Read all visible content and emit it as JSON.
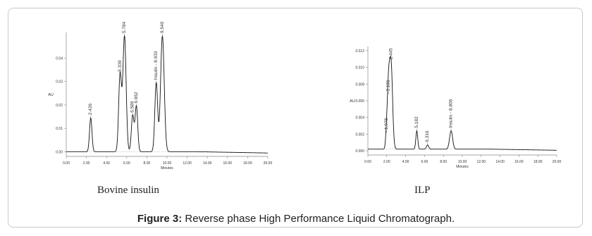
{
  "figure": {
    "caption_label": "Figure 3:",
    "caption_text": " Reverse phase High Performance Liquid Chromatograph."
  },
  "chart_data": [
    {
      "type": "line",
      "panel_label": "Bovine insulin",
      "ylabel": "AU",
      "xlabel": "Minutes",
      "xlim": [
        0,
        20
      ],
      "ylim": [
        -0.002,
        0.051
      ],
      "xticks": [
        "0.00",
        "2.00",
        "4.00",
        "6.00",
        "8.00",
        "10.00",
        "12.00",
        "14.00",
        "16.00",
        "18.00",
        "20.00"
      ],
      "yticks": [
        "0.00",
        "0.01",
        "0.02",
        "0.03",
        "0.04"
      ],
      "peaks": [
        {
          "label": "2.426",
          "x": 2.43,
          "y": 0.0145
        },
        {
          "label": "5.339",
          "x": 5.34,
          "y": 0.033
        },
        {
          "label": "5.784",
          "x": 5.78,
          "y": 0.0495
        },
        {
          "label": "6.589",
          "x": 6.59,
          "y": 0.0155
        },
        {
          "label": "6.962",
          "x": 6.96,
          "y": 0.0195
        },
        {
          "label": "Insulin - 8.933",
          "x": 8.93,
          "y": 0.0295
        },
        {
          "label": "9.540",
          "x": 9.54,
          "y": 0.0495
        }
      ]
    },
    {
      "type": "line",
      "panel_label": "ILP",
      "ylabel": "AU",
      "xlabel": "Minutes",
      "xlim": [
        0,
        20
      ],
      "ylim": [
        -0.0005,
        0.0125
      ],
      "xticks": [
        "0.00",
        "2.00",
        "4.00",
        "6.00",
        "8.00",
        "10.00",
        "12.00",
        "14.00",
        "16.00",
        "18.00",
        "20.00"
      ],
      "yticks": [
        "0.000",
        "0.002",
        "0.004",
        "0.006",
        "0.008",
        "0.010",
        "0.012"
      ],
      "peaks": [
        {
          "label": "1.978",
          "x": 1.98,
          "y": 0.0022
        },
        {
          "label": "2.181",
          "x": 2.18,
          "y": 0.0068
        },
        {
          "label": "2.445",
          "x": 2.45,
          "y": 0.0106
        },
        {
          "label": "5.182",
          "x": 5.18,
          "y": 0.0024
        },
        {
          "label": "6.316",
          "x": 6.32,
          "y": 0.0007
        },
        {
          "label": "Insulin - 8.806",
          "x": 8.81,
          "y": 0.0024
        }
      ]
    }
  ]
}
